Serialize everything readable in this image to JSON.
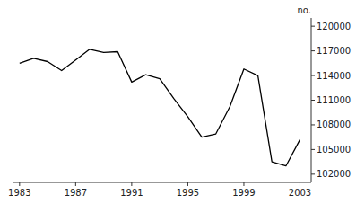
{
  "chart_data": {
    "type": "line",
    "ylabel": "no.",
    "x": [
      1983,
      1984,
      1985,
      1986,
      1987,
      1988,
      1989,
      1990,
      1991,
      1992,
      1993,
      1994,
      1995,
      1996,
      1997,
      1998,
      1999,
      2000,
      2001,
      2002,
      2003
    ],
    "values": [
      115500,
      116100,
      115700,
      114600,
      115900,
      117200,
      116800,
      116900,
      113200,
      114100,
      113600,
      111200,
      109000,
      106500,
      106900,
      110200,
      114800,
      114000,
      103500,
      103000,
      106200
    ],
    "color": "#000000",
    "xlim": [
      1982.5,
      2003.8
    ],
    "xticks": [
      1983,
      1987,
      1991,
      1995,
      1999,
      2003
    ],
    "ylim": [
      101000,
      121000
    ],
    "yticks": [
      102000,
      105000,
      108000,
      111000,
      114000,
      117000,
      120000
    ],
    "grid": false
  }
}
